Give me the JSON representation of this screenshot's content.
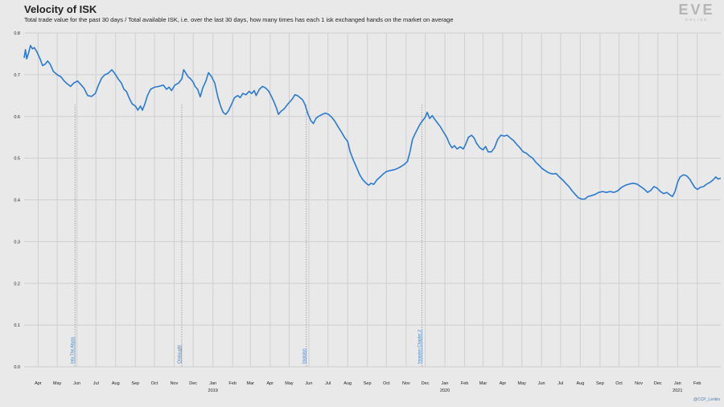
{
  "chart_data": {
    "type": "line",
    "title": "Velocity of ISK",
    "subtitle": "Total trade value for the past 30 days / Total available ISK, i.e. over the last 30 days, how many times has each 1 isk exchanged hands on the market on average",
    "ylim": [
      0,
      0.8
    ],
    "yticks": [
      "0.0",
      "0.1",
      "0.2",
      "0.3",
      "0.4",
      "0.5",
      "0.6",
      "0.7",
      "0.8"
    ],
    "grid": true,
    "x_range": [
      "2018-03-10",
      "2021-03-10"
    ],
    "x_ticks": [
      {
        "date": "2018-04-01",
        "label": "Apr"
      },
      {
        "date": "2018-05-01",
        "label": "May"
      },
      {
        "date": "2018-06-01",
        "label": "Jun"
      },
      {
        "date": "2018-07-01",
        "label": "Jul"
      },
      {
        "date": "2018-08-01",
        "label": "Aug"
      },
      {
        "date": "2018-09-01",
        "label": "Sep"
      },
      {
        "date": "2018-10-01",
        "label": "Oct"
      },
      {
        "date": "2018-11-01",
        "label": "Nov"
      },
      {
        "date": "2018-12-01",
        "label": "Dec"
      },
      {
        "date": "2019-01-01",
        "label": "Jan",
        "year": "2019"
      },
      {
        "date": "2019-02-01",
        "label": "Feb"
      },
      {
        "date": "2019-03-01",
        "label": "Mar"
      },
      {
        "date": "2019-04-01",
        "label": "Apr"
      },
      {
        "date": "2019-05-01",
        "label": "May"
      },
      {
        "date": "2019-06-01",
        "label": "Jun"
      },
      {
        "date": "2019-07-01",
        "label": "Jul"
      },
      {
        "date": "2019-08-01",
        "label": "Aug"
      },
      {
        "date": "2019-09-01",
        "label": "Sep"
      },
      {
        "date": "2019-10-01",
        "label": "Oct"
      },
      {
        "date": "2019-11-01",
        "label": "Nov"
      },
      {
        "date": "2019-12-01",
        "label": "Dec"
      },
      {
        "date": "2020-01-01",
        "label": "Jan",
        "year": "2020"
      },
      {
        "date": "2020-02-01",
        "label": "Feb"
      },
      {
        "date": "2020-03-01",
        "label": "Mar"
      },
      {
        "date": "2020-04-01",
        "label": "Apr"
      },
      {
        "date": "2020-05-01",
        "label": "May"
      },
      {
        "date": "2020-06-01",
        "label": "Jun"
      },
      {
        "date": "2020-07-01",
        "label": "Jul"
      },
      {
        "date": "2020-08-01",
        "label": "Aug"
      },
      {
        "date": "2020-09-01",
        "label": "Sep"
      },
      {
        "date": "2020-10-01",
        "label": "Oct"
      },
      {
        "date": "2020-11-01",
        "label": "Nov"
      },
      {
        "date": "2020-12-01",
        "label": "Dec"
      },
      {
        "date": "2021-01-01",
        "label": "Jan",
        "year": "2021"
      },
      {
        "date": "2021-02-01",
        "label": "Feb"
      }
    ],
    "annotations": [
      {
        "label": "Into The Abyss",
        "date": "2018-05-29"
      },
      {
        "label": "Onslaught",
        "date": "2018-11-13"
      },
      {
        "label": "Invasion",
        "date": "2019-05-28"
      },
      {
        "label": "Invasion Chapter 2",
        "date": "2019-11-26"
      }
    ],
    "series": [
      {
        "color": "#2a7ad0",
        "points": [
          [
            "2018-03-10",
            0.74
          ],
          [
            "2018-03-12",
            0.76
          ],
          [
            "2018-03-14",
            0.738
          ],
          [
            "2018-03-17",
            0.752
          ],
          [
            "2018-03-20",
            0.77
          ],
          [
            "2018-03-23",
            0.762
          ],
          [
            "2018-03-26",
            0.765
          ],
          [
            "2018-03-30",
            0.755
          ],
          [
            "2018-04-04",
            0.738
          ],
          [
            "2018-04-08",
            0.722
          ],
          [
            "2018-04-12",
            0.725
          ],
          [
            "2018-04-16",
            0.733
          ],
          [
            "2018-04-20",
            0.725
          ],
          [
            "2018-04-25",
            0.708
          ],
          [
            "2018-05-01",
            0.7
          ],
          [
            "2018-05-07",
            0.695
          ],
          [
            "2018-05-12",
            0.685
          ],
          [
            "2018-05-17",
            0.678
          ],
          [
            "2018-05-22",
            0.672
          ],
          [
            "2018-05-27",
            0.68
          ],
          [
            "2018-06-02",
            0.685
          ],
          [
            "2018-06-08",
            0.675
          ],
          [
            "2018-06-12",
            0.668
          ],
          [
            "2018-06-18",
            0.65
          ],
          [
            "2018-06-24",
            0.648
          ],
          [
            "2018-06-30",
            0.655
          ],
          [
            "2018-07-05",
            0.675
          ],
          [
            "2018-07-10",
            0.692
          ],
          [
            "2018-07-15",
            0.7
          ],
          [
            "2018-07-20",
            0.703
          ],
          [
            "2018-07-26",
            0.712
          ],
          [
            "2018-07-31",
            0.702
          ],
          [
            "2018-08-05",
            0.69
          ],
          [
            "2018-08-10",
            0.68
          ],
          [
            "2018-08-14",
            0.665
          ],
          [
            "2018-08-18",
            0.66
          ],
          [
            "2018-08-22",
            0.645
          ],
          [
            "2018-08-27",
            0.63
          ],
          [
            "2018-09-01",
            0.625
          ],
          [
            "2018-09-05",
            0.615
          ],
          [
            "2018-09-09",
            0.625
          ],
          [
            "2018-09-12",
            0.615
          ],
          [
            "2018-09-16",
            0.63
          ],
          [
            "2018-09-20",
            0.65
          ],
          [
            "2018-09-25",
            0.665
          ],
          [
            "2018-10-01",
            0.67
          ],
          [
            "2018-10-08",
            0.672
          ],
          [
            "2018-10-15",
            0.675
          ],
          [
            "2018-10-20",
            0.665
          ],
          [
            "2018-10-24",
            0.67
          ],
          [
            "2018-10-28",
            0.662
          ],
          [
            "2018-11-02",
            0.675
          ],
          [
            "2018-11-08",
            0.68
          ],
          [
            "2018-11-13",
            0.69
          ],
          [
            "2018-11-16",
            0.712
          ],
          [
            "2018-11-19",
            0.705
          ],
          [
            "2018-11-23",
            0.695
          ],
          [
            "2018-11-27",
            0.69
          ],
          [
            "2018-12-01",
            0.682
          ],
          [
            "2018-12-04",
            0.672
          ],
          [
            "2018-12-08",
            0.665
          ],
          [
            "2018-12-12",
            0.647
          ],
          [
            "2018-12-16",
            0.668
          ],
          [
            "2018-12-21",
            0.685
          ],
          [
            "2018-12-25",
            0.705
          ],
          [
            "2018-12-30",
            0.695
          ],
          [
            "2019-01-04",
            0.68
          ],
          [
            "2019-01-09",
            0.645
          ],
          [
            "2019-01-13",
            0.625
          ],
          [
            "2019-01-17",
            0.61
          ],
          [
            "2019-01-21",
            0.605
          ],
          [
            "2019-01-25",
            0.612
          ],
          [
            "2019-01-30",
            0.628
          ],
          [
            "2019-02-04",
            0.645
          ],
          [
            "2019-02-09",
            0.65
          ],
          [
            "2019-02-13",
            0.645
          ],
          [
            "2019-02-17",
            0.655
          ],
          [
            "2019-02-22",
            0.652
          ],
          [
            "2019-02-27",
            0.66
          ],
          [
            "2019-03-03",
            0.655
          ],
          [
            "2019-03-07",
            0.662
          ],
          [
            "2019-03-10",
            0.65
          ],
          [
            "2019-03-15",
            0.665
          ],
          [
            "2019-03-20",
            0.672
          ],
          [
            "2019-03-25",
            0.668
          ],
          [
            "2019-03-30",
            0.66
          ],
          [
            "2019-04-03",
            0.648
          ],
          [
            "2019-04-07",
            0.635
          ],
          [
            "2019-04-11",
            0.62
          ],
          [
            "2019-04-14",
            0.605
          ],
          [
            "2019-04-18",
            0.612
          ],
          [
            "2019-04-23",
            0.618
          ],
          [
            "2019-04-28",
            0.628
          ],
          [
            "2019-05-02",
            0.635
          ],
          [
            "2019-05-06",
            0.642
          ],
          [
            "2019-05-10",
            0.652
          ],
          [
            "2019-05-14",
            0.65
          ],
          [
            "2019-05-18",
            0.645
          ],
          [
            "2019-05-22",
            0.64
          ],
          [
            "2019-05-26",
            0.628
          ],
          [
            "2019-05-30",
            0.608
          ],
          [
            "2019-06-04",
            0.59
          ],
          [
            "2019-06-08",
            0.583
          ],
          [
            "2019-06-12",
            0.595
          ],
          [
            "2019-06-16",
            0.6
          ],
          [
            "2019-06-22",
            0.605
          ],
          [
            "2019-06-27",
            0.608
          ],
          [
            "2019-07-02",
            0.605
          ],
          [
            "2019-07-07",
            0.598
          ],
          [
            "2019-07-12",
            0.588
          ],
          [
            "2019-07-17",
            0.575
          ],
          [
            "2019-07-22",
            0.563
          ],
          [
            "2019-07-27",
            0.55
          ],
          [
            "2019-08-01",
            0.54
          ],
          [
            "2019-08-05",
            0.515
          ],
          [
            "2019-08-10",
            0.495
          ],
          [
            "2019-08-15",
            0.478
          ],
          [
            "2019-08-20",
            0.46
          ],
          [
            "2019-08-25",
            0.448
          ],
          [
            "2019-08-30",
            0.44
          ],
          [
            "2019-09-03",
            0.435
          ],
          [
            "2019-09-07",
            0.44
          ],
          [
            "2019-09-11",
            0.437
          ],
          [
            "2019-09-16",
            0.448
          ],
          [
            "2019-09-21",
            0.455
          ],
          [
            "2019-09-26",
            0.462
          ],
          [
            "2019-10-01",
            0.468
          ],
          [
            "2019-10-06",
            0.47
          ],
          [
            "2019-10-12",
            0.472
          ],
          [
            "2019-10-18",
            0.475
          ],
          [
            "2019-10-24",
            0.48
          ],
          [
            "2019-10-29",
            0.485
          ],
          [
            "2019-11-03",
            0.492
          ],
          [
            "2019-11-07",
            0.515
          ],
          [
            "2019-11-11",
            0.545
          ],
          [
            "2019-11-15",
            0.558
          ],
          [
            "2019-11-19",
            0.57
          ],
          [
            "2019-11-23",
            0.582
          ],
          [
            "2019-11-27",
            0.59
          ],
          [
            "2019-12-01",
            0.598
          ],
          [
            "2019-12-04",
            0.61
          ],
          [
            "2019-12-08",
            0.595
          ],
          [
            "2019-12-12",
            0.602
          ],
          [
            "2019-12-16",
            0.593
          ],
          [
            "2019-12-20",
            0.585
          ],
          [
            "2019-12-25",
            0.575
          ],
          [
            "2019-12-30",
            0.562
          ],
          [
            "2020-01-04",
            0.55
          ],
          [
            "2020-01-08",
            0.535
          ],
          [
            "2020-01-12",
            0.525
          ],
          [
            "2020-01-16",
            0.53
          ],
          [
            "2020-01-20",
            0.522
          ],
          [
            "2020-01-25",
            0.527
          ],
          [
            "2020-01-30",
            0.522
          ],
          [
            "2020-02-03",
            0.535
          ],
          [
            "2020-02-07",
            0.55
          ],
          [
            "2020-02-12",
            0.555
          ],
          [
            "2020-02-16",
            0.548
          ],
          [
            "2020-02-20",
            0.535
          ],
          [
            "2020-02-25",
            0.525
          ],
          [
            "2020-03-01",
            0.52
          ],
          [
            "2020-03-05",
            0.528
          ],
          [
            "2020-03-09",
            0.515
          ],
          [
            "2020-03-14",
            0.515
          ],
          [
            "2020-03-19",
            0.525
          ],
          [
            "2020-03-24",
            0.545
          ],
          [
            "2020-03-29",
            0.555
          ],
          [
            "2020-04-03",
            0.553
          ],
          [
            "2020-04-08",
            0.555
          ],
          [
            "2020-04-13",
            0.548
          ],
          [
            "2020-04-18",
            0.542
          ],
          [
            "2020-04-23",
            0.533
          ],
          [
            "2020-04-28",
            0.525
          ],
          [
            "2020-05-03",
            0.515
          ],
          [
            "2020-05-08",
            0.512
          ],
          [
            "2020-05-13",
            0.505
          ],
          [
            "2020-05-18",
            0.5
          ],
          [
            "2020-05-23",
            0.49
          ],
          [
            "2020-05-28",
            0.483
          ],
          [
            "2020-06-02",
            0.475
          ],
          [
            "2020-06-07",
            0.47
          ],
          [
            "2020-06-12",
            0.465
          ],
          [
            "2020-06-18",
            0.462
          ],
          [
            "2020-06-24",
            0.463
          ],
          [
            "2020-06-29",
            0.455
          ],
          [
            "2020-07-04",
            0.448
          ],
          [
            "2020-07-09",
            0.44
          ],
          [
            "2020-07-14",
            0.432
          ],
          [
            "2020-07-19",
            0.422
          ],
          [
            "2020-07-24",
            0.413
          ],
          [
            "2020-07-29",
            0.405
          ],
          [
            "2020-08-03",
            0.402
          ],
          [
            "2020-08-08",
            0.402
          ],
          [
            "2020-08-13",
            0.408
          ],
          [
            "2020-08-18",
            0.41
          ],
          [
            "2020-08-24",
            0.413
          ],
          [
            "2020-08-30",
            0.418
          ],
          [
            "2020-09-05",
            0.42
          ],
          [
            "2020-09-11",
            0.418
          ],
          [
            "2020-09-17",
            0.42
          ],
          [
            "2020-09-23",
            0.418
          ],
          [
            "2020-09-29",
            0.422
          ],
          [
            "2020-10-05",
            0.43
          ],
          [
            "2020-10-11",
            0.435
          ],
          [
            "2020-10-17",
            0.438
          ],
          [
            "2020-10-23",
            0.44
          ],
          [
            "2020-10-29",
            0.438
          ],
          [
            "2020-11-04",
            0.432
          ],
          [
            "2020-11-10",
            0.425
          ],
          [
            "2020-11-15",
            0.418
          ],
          [
            "2020-11-20",
            0.423
          ],
          [
            "2020-11-25",
            0.432
          ],
          [
            "2020-11-30",
            0.428
          ],
          [
            "2020-12-05",
            0.42
          ],
          [
            "2020-12-10",
            0.415
          ],
          [
            "2020-12-15",
            0.418
          ],
          [
            "2020-12-20",
            0.412
          ],
          [
            "2020-12-24",
            0.408
          ],
          [
            "2020-12-28",
            0.42
          ],
          [
            "2021-01-01",
            0.442
          ],
          [
            "2021-01-05",
            0.455
          ],
          [
            "2021-01-10",
            0.46
          ],
          [
            "2021-01-15",
            0.458
          ],
          [
            "2021-01-20",
            0.45
          ],
          [
            "2021-01-24",
            0.44
          ],
          [
            "2021-01-28",
            0.43
          ],
          [
            "2021-02-01",
            0.425
          ],
          [
            "2021-02-06",
            0.43
          ],
          [
            "2021-02-11",
            0.432
          ],
          [
            "2021-02-16",
            0.438
          ],
          [
            "2021-02-21",
            0.442
          ],
          [
            "2021-02-26",
            0.448
          ],
          [
            "2021-03-02",
            0.455
          ],
          [
            "2021-03-06",
            0.45
          ],
          [
            "2021-03-10",
            0.452
          ]
        ]
      }
    ]
  },
  "branding": {
    "logo_text": "EVE",
    "logo_subtext": "ONLINE",
    "credit": "@CCP_Lerikin"
  }
}
